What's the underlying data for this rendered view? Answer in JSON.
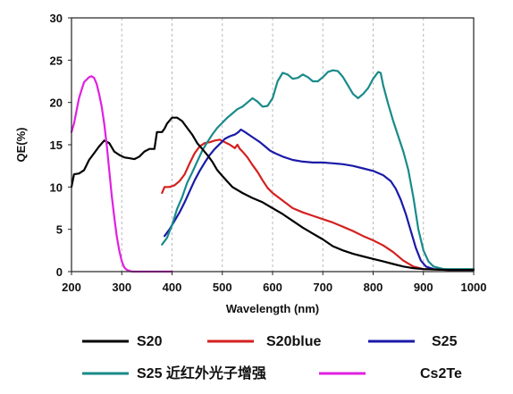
{
  "chart_data": {
    "type": "line",
    "title": "",
    "xlabel": "Wavelength (nm)",
    "ylabel": "QE(%)",
    "xlim": [
      200,
      1000
    ],
    "ylim": [
      0,
      30
    ],
    "xticks": [
      "200",
      "300",
      "400",
      "500",
      "600",
      "700",
      "800",
      "900",
      "1000"
    ],
    "yticks": [
      "0",
      "5",
      "10",
      "15",
      "20",
      "25",
      "30"
    ],
    "grid": "vertical dashed lines",
    "legend_position": "bottom",
    "series": [
      {
        "name": "S20",
        "color": "#000000",
        "points": [
          [
            200,
            10
          ],
          [
            205,
            11.5
          ],
          [
            215,
            11.6
          ],
          [
            225,
            12.0
          ],
          [
            235,
            13.2
          ],
          [
            245,
            14.0
          ],
          [
            255,
            14.8
          ],
          [
            265,
            15.5
          ],
          [
            275,
            15.2
          ],
          [
            285,
            14.2
          ],
          [
            295,
            13.8
          ],
          [
            305,
            13.5
          ],
          [
            315,
            13.4
          ],
          [
            325,
            13.3
          ],
          [
            335,
            13.6
          ],
          [
            345,
            14.2
          ],
          [
            355,
            14.5
          ],
          [
            365,
            14.5
          ],
          [
            370,
            16.5
          ],
          [
            380,
            16.5
          ],
          [
            385,
            16.9
          ],
          [
            390,
            17.5
          ],
          [
            400,
            18.2
          ],
          [
            410,
            18.2
          ],
          [
            420,
            17.8
          ],
          [
            430,
            17.0
          ],
          [
            440,
            16.2
          ],
          [
            450,
            15.2
          ],
          [
            460,
            14.5
          ],
          [
            470,
            13.8
          ],
          [
            480,
            13.0
          ],
          [
            490,
            12.0
          ],
          [
            500,
            11.3
          ],
          [
            520,
            10.0
          ],
          [
            540,
            9.3
          ],
          [
            560,
            8.7
          ],
          [
            580,
            8.2
          ],
          [
            600,
            7.5
          ],
          [
            620,
            6.8
          ],
          [
            640,
            6.0
          ],
          [
            660,
            5.2
          ],
          [
            680,
            4.5
          ],
          [
            700,
            3.8
          ],
          [
            720,
            3.0
          ],
          [
            740,
            2.5
          ],
          [
            760,
            2.1
          ],
          [
            780,
            1.8
          ],
          [
            800,
            1.5
          ],
          [
            820,
            1.2
          ],
          [
            840,
            0.9
          ],
          [
            860,
            0.6
          ],
          [
            880,
            0.4
          ],
          [
            900,
            0.3
          ],
          [
            950,
            0.2
          ],
          [
            1000,
            0.2
          ]
        ]
      },
      {
        "name": "S20blue",
        "color": "#d42020",
        "points": [
          [
            380,
            9.3
          ],
          [
            385,
            10.0
          ],
          [
            395,
            10.0
          ],
          [
            405,
            10.2
          ],
          [
            415,
            10.7
          ],
          [
            425,
            11.5
          ],
          [
            435,
            12.8
          ],
          [
            445,
            14.0
          ],
          [
            455,
            14.8
          ],
          [
            465,
            15.2
          ],
          [
            475,
            15.3
          ],
          [
            485,
            15.5
          ],
          [
            495,
            15.6
          ],
          [
            505,
            15.3
          ],
          [
            515,
            15.0
          ],
          [
            525,
            14.6
          ],
          [
            530,
            15.0
          ],
          [
            535,
            14.5
          ],
          [
            540,
            14.2
          ],
          [
            550,
            13.5
          ],
          [
            560,
            12.6
          ],
          [
            570,
            11.8
          ],
          [
            580,
            10.8
          ],
          [
            590,
            9.9
          ],
          [
            600,
            9.3
          ],
          [
            620,
            8.4
          ],
          [
            640,
            7.5
          ],
          [
            660,
            7.0
          ],
          [
            680,
            6.6
          ],
          [
            700,
            6.2
          ],
          [
            720,
            5.8
          ],
          [
            740,
            5.3
          ],
          [
            760,
            4.8
          ],
          [
            780,
            4.2
          ],
          [
            800,
            3.7
          ],
          [
            820,
            3.1
          ],
          [
            840,
            2.3
          ],
          [
            860,
            1.3
          ],
          [
            880,
            0.6
          ],
          [
            900,
            0.3
          ],
          [
            950,
            0.2
          ],
          [
            1000,
            0.2
          ]
        ]
      },
      {
        "name": "S25",
        "color": "#1a1aa8",
        "points": [
          [
            385,
            4.2
          ],
          [
            395,
            5.0
          ],
          [
            405,
            6.0
          ],
          [
            415,
            7.0
          ],
          [
            425,
            8.2
          ],
          [
            435,
            9.5
          ],
          [
            445,
            10.8
          ],
          [
            455,
            11.9
          ],
          [
            465,
            12.9
          ],
          [
            475,
            13.8
          ],
          [
            485,
            14.5
          ],
          [
            495,
            15.1
          ],
          [
            505,
            15.7
          ],
          [
            515,
            16.0
          ],
          [
            525,
            16.2
          ],
          [
            532,
            16.5
          ],
          [
            537,
            16.8
          ],
          [
            545,
            16.5
          ],
          [
            555,
            16.1
          ],
          [
            565,
            15.7
          ],
          [
            575,
            15.3
          ],
          [
            585,
            14.8
          ],
          [
            595,
            14.3
          ],
          [
            605,
            14.0
          ],
          [
            620,
            13.6
          ],
          [
            640,
            13.2
          ],
          [
            660,
            13.0
          ],
          [
            680,
            12.9
          ],
          [
            700,
            12.9
          ],
          [
            720,
            12.8
          ],
          [
            740,
            12.7
          ],
          [
            760,
            12.5
          ],
          [
            780,
            12.2
          ],
          [
            800,
            11.9
          ],
          [
            820,
            11.4
          ],
          [
            835,
            10.7
          ],
          [
            845,
            9.8
          ],
          [
            855,
            8.5
          ],
          [
            865,
            6.8
          ],
          [
            875,
            4.8
          ],
          [
            885,
            2.8
          ],
          [
            895,
            1.3
          ],
          [
            905,
            0.6
          ],
          [
            920,
            0.3
          ],
          [
            950,
            0.2
          ],
          [
            1000,
            0.2
          ]
        ]
      },
      {
        "name": "S25 近红外光子增强",
        "color": "#1a8a8a",
        "points": [
          [
            380,
            3.2
          ],
          [
            390,
            4.0
          ],
          [
            400,
            5.5
          ],
          [
            410,
            7.4
          ],
          [
            420,
            8.8
          ],
          [
            430,
            10.5
          ],
          [
            440,
            11.7
          ],
          [
            450,
            13.0
          ],
          [
            460,
            14.3
          ],
          [
            470,
            15.3
          ],
          [
            480,
            16.2
          ],
          [
            490,
            17.0
          ],
          [
            500,
            17.6
          ],
          [
            510,
            18.2
          ],
          [
            520,
            18.7
          ],
          [
            530,
            19.2
          ],
          [
            540,
            19.5
          ],
          [
            550,
            20.0
          ],
          [
            560,
            20.5
          ],
          [
            570,
            20.1
          ],
          [
            580,
            19.5
          ],
          [
            590,
            19.6
          ],
          [
            600,
            20.5
          ],
          [
            610,
            22.5
          ],
          [
            620,
            23.5
          ],
          [
            630,
            23.3
          ],
          [
            640,
            22.8
          ],
          [
            650,
            22.9
          ],
          [
            660,
            23.3
          ],
          [
            670,
            23.0
          ],
          [
            680,
            22.5
          ],
          [
            690,
            22.5
          ],
          [
            700,
            23.0
          ],
          [
            710,
            23.6
          ],
          [
            720,
            23.8
          ],
          [
            730,
            23.7
          ],
          [
            740,
            23.0
          ],
          [
            750,
            22.0
          ],
          [
            760,
            21.0
          ],
          [
            770,
            20.5
          ],
          [
            780,
            21.0
          ],
          [
            790,
            21.7
          ],
          [
            800,
            22.8
          ],
          [
            810,
            23.6
          ],
          [
            815,
            23.5
          ],
          [
            820,
            22.0
          ],
          [
            830,
            19.8
          ],
          [
            840,
            17.8
          ],
          [
            850,
            16.0
          ],
          [
            860,
            14.2
          ],
          [
            870,
            12.0
          ],
          [
            880,
            8.8
          ],
          [
            890,
            5.0
          ],
          [
            900,
            2.5
          ],
          [
            910,
            1.2
          ],
          [
            920,
            0.6
          ],
          [
            940,
            0.3
          ],
          [
            1000,
            0.3
          ]
        ]
      },
      {
        "name": "Cs2Te",
        "color": "#e020e0",
        "points": [
          [
            200,
            16.5
          ],
          [
            205,
            17.5
          ],
          [
            210,
            19.0
          ],
          [
            215,
            20.5
          ],
          [
            220,
            21.5
          ],
          [
            225,
            22.4
          ],
          [
            230,
            22.7
          ],
          [
            235,
            23.0
          ],
          [
            240,
            23.1
          ],
          [
            245,
            22.9
          ],
          [
            250,
            22.2
          ],
          [
            255,
            21.0
          ],
          [
            260,
            19.5
          ],
          [
            265,
            17.5
          ],
          [
            270,
            15.0
          ],
          [
            275,
            12.0
          ],
          [
            280,
            9.0
          ],
          [
            285,
            6.5
          ],
          [
            290,
            4.2
          ],
          [
            295,
            2.5
          ],
          [
            300,
            1.2
          ],
          [
            305,
            0.5
          ],
          [
            310,
            0.2
          ],
          [
            320,
            0
          ],
          [
            360,
            0
          ],
          [
            400,
            0
          ]
        ]
      }
    ]
  }
}
